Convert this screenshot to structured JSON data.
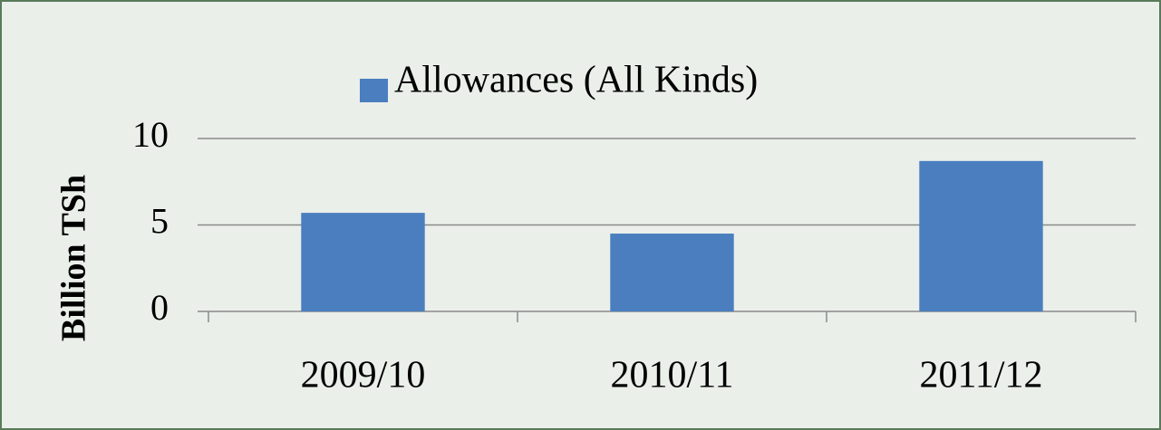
{
  "chart_data": {
    "type": "bar",
    "legend_position": "top",
    "y_label": "Billion TSh",
    "series": [
      {
        "name": "Allowances (All Kinds)",
        "color": "#4a7ebf",
        "values": [
          5.7,
          4.5,
          8.7
        ]
      }
    ],
    "categories": [
      "2009/10",
      "2010/11",
      "2011/12"
    ],
    "ylim": [
      0,
      10
    ],
    "yticks": [
      0,
      5,
      10
    ],
    "grid": true
  }
}
